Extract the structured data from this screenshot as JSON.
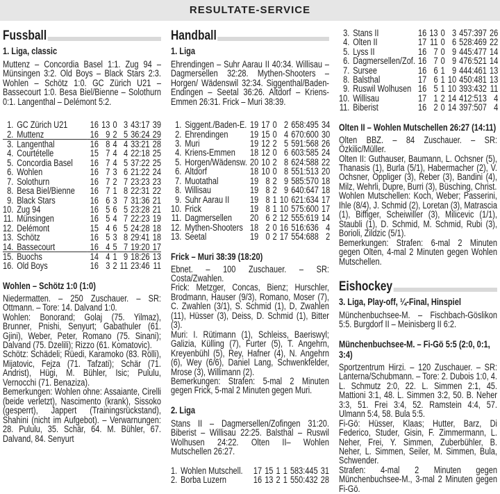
{
  "header": {
    "title": "RESULTATE-SERVICE"
  },
  "fussball": {
    "section": "Fussball",
    "league": "1. Liga, classic",
    "results": "Muttenz – Concordia Basel 1:1. Zug 94 – Münsingen 3:2. Old Boys – Black Stars 2:3. Wohlen – Schötz 1:0. GC Zürich U21 – Bassecourt 1:0. Besa Biel/Bienne – Solothurn 0:1. Langenthal – Delémont 5:2.",
    "table": [
      [
        "1.",
        "GC Zürich U21",
        "16",
        "13",
        "0",
        "3",
        "43:17",
        "39"
      ],
      [
        "2.",
        "Muttenz",
        "16",
        "9",
        "2",
        "5",
        "36:24",
        "29"
      ],
      [
        "3.",
        "Langenthal",
        "16",
        "8",
        "4",
        "4",
        "33:21",
        "28"
      ],
      [
        "4.",
        "Courtételle",
        "15",
        "7",
        "4",
        "4",
        "22:18",
        "25"
      ],
      [
        "5.",
        "Concordia Basel",
        "16",
        "7",
        "4",
        "5",
        "37:22",
        "25"
      ],
      [
        "6.",
        "Wohlen",
        "16",
        "7",
        "3",
        "6",
        "21:22",
        "24"
      ],
      [
        "7.",
        "Solothurn",
        "16",
        "7",
        "2",
        "7",
        "23:23",
        "23"
      ],
      [
        "8.",
        "Besa Biel/Bienne",
        "16",
        "7",
        "1",
        "8",
        "22:31",
        "22"
      ],
      [
        "9.",
        "Black Stars",
        "16",
        "6",
        "3",
        "7",
        "31:36",
        "21"
      ],
      [
        "10.",
        "Zug 94",
        "16",
        "5",
        "6",
        "5",
        "23:28",
        "21"
      ],
      [
        "11.",
        "Münsingen",
        "16",
        "5",
        "4",
        "7",
        "22:23",
        "19"
      ],
      [
        "12.",
        "Delémont",
        "15",
        "4",
        "6",
        "5",
        "24:28",
        "18"
      ],
      [
        "13.",
        "Schötz",
        "16",
        "5",
        "3",
        "8",
        "29:41",
        "18"
      ],
      [
        "14.",
        "Bassecourt",
        "16",
        "4",
        "5",
        "7",
        "19:20",
        "17"
      ],
      [
        "15.",
        "Buochs",
        "14",
        "4",
        "1",
        "9",
        "18:26",
        "13"
      ],
      [
        "16.",
        "Old Boys",
        "16",
        "3",
        "2",
        "11",
        "23:46",
        "11"
      ]
    ],
    "match": {
      "title": "Wohlen – Schötz 1:0 (1:0)",
      "lines": [
        "Niedermatten. – 250 Zuschauer. – SR: Ottmann. – Tore: 14. Dalvand 1:0.",
        "Wohlen: Bonorand; Golaj (75. Yilmaz), Brunner, Pnishi, Senyurt; Gabathuler (61. Gjini), Weber, Peter, Romano (75. Sinani); Dalvand (75. Dzelili); Rizzo (61. Komatovic).",
        "Schötz: Schädeli; Rüedi, Karamoko (83. Rölli), Mijatovic, Fejza (71. Tafzati); Schär (71. Andrist), Hügi, M. Bühler, Isic; Pululu, Vernocchi (71. Benaziza).",
        "Bemerkungen: Wohlen ohne: Assaiante, Cirelli (beide verletzt), Nascimento (krank), Sissoko (gesperrt), Jappert (Trainingsrückstand), Shahini (nicht im Aufgebot). – Verwarnungen: 28. Pululu, 35. Schär, 64. M. Bühler, 67. Dalvand, 84. Senyurt"
      ]
    }
  },
  "handball": {
    "section": "Handball",
    "liga1": {
      "league": "1. Liga",
      "results": "Ehrendingen – Suhr Aarau II 40:34. Willisau – Dagmersellen 32:28. Mythen-Shooters – Horgen/ Wädenswil 32:34. Siggenthal/Baden-Endingen – Seetal 36:26. Altdorf – Kriens-Emmen 26:31. Frick – Muri 38:39.",
      "table": [
        [
          "1.",
          "Siggent./Baden-E.",
          "19",
          "17",
          "0",
          "2",
          "658:495",
          "34"
        ],
        [
          "2.",
          "Ehrendingen",
          "19",
          "15",
          "0",
          "4",
          "670:600",
          "30"
        ],
        [
          "3.",
          "Muri",
          "19",
          "12",
          "2",
          "5",
          "591:568",
          "26"
        ],
        [
          "4.",
          "Kriens-Emmen",
          "18",
          "12",
          "0",
          "6",
          "603:585",
          "24"
        ],
        [
          "5.",
          "Horgen/Wädensw.",
          "20",
          "10",
          "2",
          "8",
          "624:588",
          "22"
        ],
        [
          "6.",
          "Altdorf",
          "18",
          "10",
          "0",
          "8",
          "551:513",
          "20"
        ],
        [
          "7.",
          "Muotathal",
          "19",
          "8",
          "2",
          "9",
          "585:570",
          "18"
        ],
        [
          "8.",
          "Willisau",
          "19",
          "8",
          "2",
          "9",
          "640:647",
          "18"
        ],
        [
          "9.",
          "Suhr Aarau II",
          "19",
          "8",
          "1",
          "10",
          "621:634",
          "17"
        ],
        [
          "10.",
          "Frick",
          "19",
          "8",
          "1",
          "10",
          "575:600",
          "17"
        ],
        [
          "11.",
          "Dagmersellen",
          "20",
          "6",
          "2",
          "12",
          "555:619",
          "14"
        ],
        [
          "12.",
          "Mythen-Shooters",
          "18",
          "2",
          "0",
          "16",
          "516:636",
          "4"
        ],
        [
          "13.",
          "Seetal",
          "19",
          "0",
          "2",
          "17",
          "554:688",
          "2"
        ]
      ],
      "match": {
        "title": "Frick – Muri 38:39 (18:20)",
        "lines": [
          "Ebnet. – 100 Zuschauer. – SR: Costa/Zwahlen.",
          "Frick: Metzger, Concas, Bienz; Hurschler, Brodmann, Hauser (9/3), Romano, Moser (7), C. Zwahlen (3/1), S. Schmid (1), D, Zwahlen (11), Hüsser (3), Deiss, D. Schmid (1), Bitter (3).",
          "Muri: I. Rütimann (1), Schleiss, Baeriswyl; Galizia, Külling (7), Furter (5), T. Angehrn, Kreyenbühl (5), Rey, Hafner (4), N. Angehrn (6), Wey (6/6), Daniel Lang, Schwenkfelder, Mrose (3), Willimann (2).",
          "Bemerkungen: Strafen: 5-mal 2 Minuten gegen Frick, 5-mal 2 Minuten gegen Muri."
        ]
      }
    },
    "liga2": {
      "league": "2. Liga",
      "results": "Stans II – Dagmersellen/Zofingen 31:20. Biberist – Willisau 22:25. Balsthal – Ruswil Wolhusen 24:22. Olten II– Wohlen Mutschellen 26:27.",
      "table": [
        [
          "1.",
          "Wohlen Mutschell.",
          "17",
          "15",
          "1",
          "1",
          "583:445",
          "31"
        ],
        [
          "2.",
          "Borba Luzern",
          "16",
          "13",
          "2",
          "1",
          "550:432",
          "28"
        ],
        [
          "3.",
          "Stans II",
          "16",
          "13",
          "0",
          "3",
          "457:397",
          "26"
        ],
        [
          "4.",
          "Olten II",
          "17",
          "11",
          "0",
          "6",
          "528:469",
          "22"
        ],
        [
          "5.",
          "Lyss II",
          "16",
          "7",
          "0",
          "9",
          "445:477",
          "14"
        ],
        [
          "6.",
          "Dagmersellen/Zof.",
          "16",
          "7",
          "0",
          "9",
          "476:521",
          "14"
        ],
        [
          "7.",
          "Sursee",
          "16",
          "6",
          "1",
          "9",
          "444:461",
          "13"
        ],
        [
          "8.",
          "Balsthal",
          "17",
          "6",
          "1",
          "10",
          "450:481",
          "13"
        ],
        [
          "9.",
          "Ruswil Wolhusen",
          "16",
          "5",
          "1",
          "10",
          "393:432",
          "11"
        ],
        [
          "10.",
          "Willisau",
          "17",
          "1",
          "2",
          "14",
          "412:513",
          "4"
        ],
        [
          "11.",
          "Biberist",
          "16",
          "2",
          "0",
          "14",
          "397:507",
          "4"
        ]
      ],
      "match": {
        "title": "Olten II – Wohlen Mutschellen 26:27 (14:11)",
        "lines": [
          "Olten BBZ. – 84 Zuschauer. – SR: Özkilic/Müller.",
          "Olten II: Guthauser, Baumann, L. Ochsner (5), Thanasis (1), Burla (5/1), Habermacher (2), V. Ochsner, Oppliger (3), Reber (3), Bandini (4), Milz, Wehrli, Dupre, Burri (3), Büsching, Christ.",
          "Wohlen Mutschellen: Koch, Weber; Passerini, Ihle (8/4), J. Schmid (2), Loretan (3), Matrascia (1), Biffiger, Scheiwiller (3), Milicevic (1/1), Staubli (1), D. Schmid, M. Schmid, Rubi (3), Borioli, Zildzic (5/1).",
          "Bemerkungen: Strafen: 6-mal 2 Minuten gegen Olten, 4-mal 2 Minuten gegen Wohlen Mutschellen."
        ]
      }
    }
  },
  "eishockey": {
    "section": "Eishockey",
    "league": "3. Liga, Play-off, ¼-Final, Hinspiel",
    "results": "Münchenbuchsee-M. – Fischbach-Göslikon 5:5. Burgdorf II – Meinisberg II 6:2.",
    "match": {
      "title": "Münchenbuchsee-M. – Fi-Gö 5:5 (2:0, 0:1, 3:4)",
      "lines": [
        "Sportzentrum Hirzi. – 120 Zuschauer. – SR: Lanterna/Schubmann. – Tore: 2. Dubois 1:0, 4. L. Schmutz 2:0, 22. L. Simmen 2:1, 45. Mattioni 3:1, 48. L. Simmen 3:2, 50. B. Neher 3:3, 51. Frei 3:4, 52. Ramstein 4:4, 57. Ulmann 5:4, 58. Bula 5:5.",
        "Fi-Gö: Hüsser, Klaas; Hutter, Barz, Di Federico, Studer, Gisin, F. Zimmermann, L. Neher, Frei, Y. Simmen, Zuberbühler, B. Neher, L. Simmen, Seiler, M. Simmen, Bula, Schwender.",
        "Strafen: 4-mal 2 Minuten gegen Münchenbuchsee-M., 3-mal 2 Minuten gegen Fi-Gö."
      ]
    }
  }
}
